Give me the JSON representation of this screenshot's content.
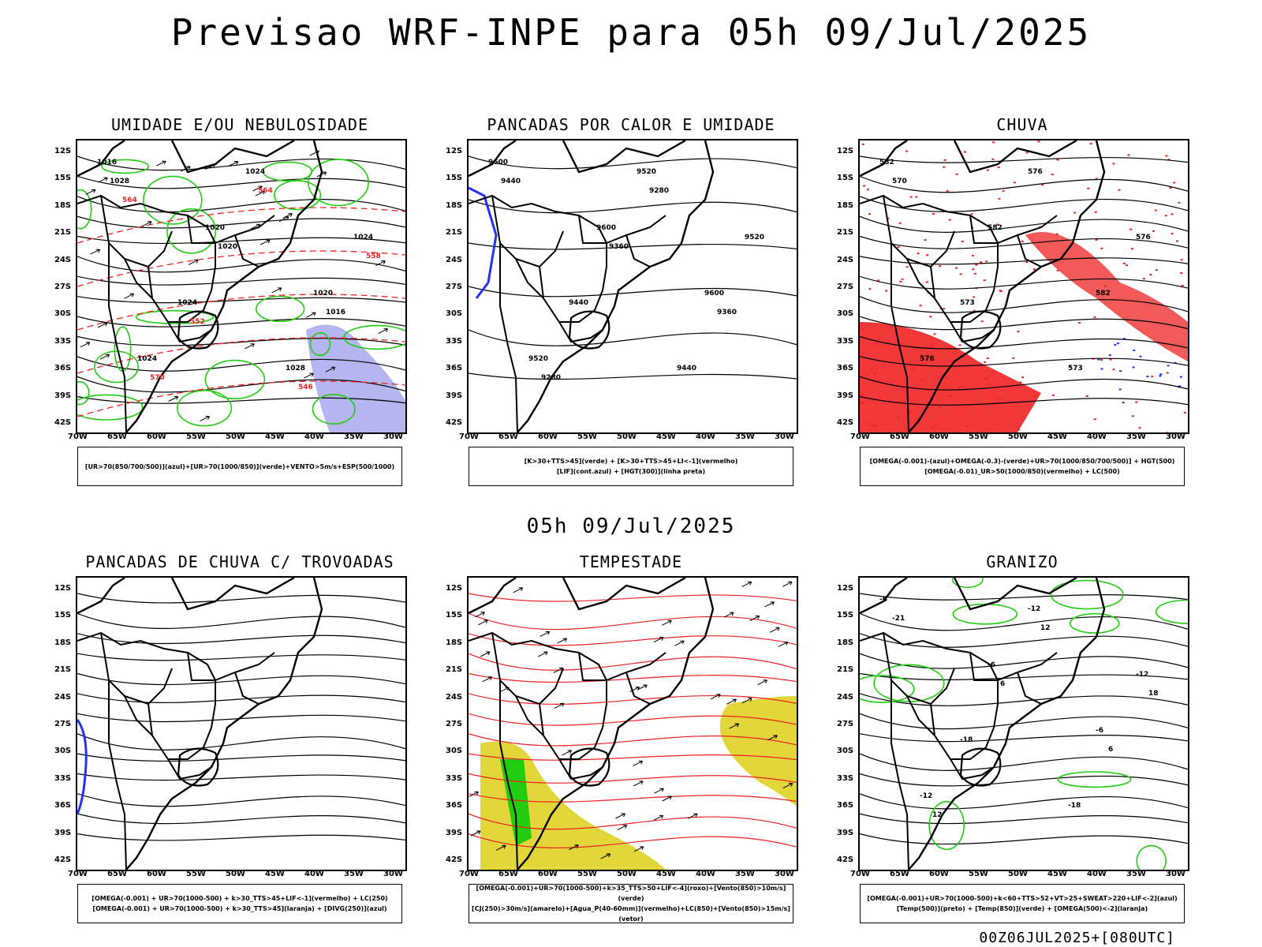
{
  "title": "Previsao WRF-INPE  para 05h 09/Jul/2025",
  "mid_date": "05h 09/Jul/2025",
  "footer": "00Z06JUL2025+[080UTC]",
  "lat_labels": [
    "12S",
    "15S",
    "18S",
    "21S",
    "24S",
    "27S",
    "30S",
    "33S",
    "36S",
    "39S",
    "42S"
  ],
  "lon_labels": [
    "70W",
    "65W",
    "60W",
    "55W",
    "50W",
    "45W",
    "40W",
    "35W",
    "30W"
  ],
  "panels": [
    {
      "title": "UMIDADE E/OU NEBULOSIDADE",
      "legend": [
        "[UR>70(850/700/500)](azul)+[UR>70(1000/850)](verde)+VENTO>5m/s+ESP(500/1000)"
      ],
      "labels": [
        "1016",
        "1020",
        "1020",
        "1024",
        "1024",
        "1024",
        "1024",
        "1028",
        "1028",
        "1020",
        "1016",
        "570",
        "564",
        "558",
        "552",
        "546",
        "564"
      ]
    },
    {
      "title": "PANCADAS POR CALOR E UMIDADE",
      "legend": [
        "[K>30+TTS>45](verde) + [K>30+TTS>45+LI<-1](vermelho)",
        "[LIF](cont.azul) + [HGT(300)](linha preta)"
      ],
      "labels": [
        "9600",
        "9600",
        "9600",
        "9520",
        "9520",
        "9520",
        "9440",
        "9440",
        "9440",
        "9360",
        "9360",
        "9280",
        "9280"
      ]
    },
    {
      "title": "CHUVA",
      "legend": [
        "[OMEGA(-0.001)-(azul)+OMEGA(-0.3)-(verde)+UR>70(1000/850/700/500)] + HGT(500)",
        "[OMEGA(-0.01)_UR>50(1000/850)(vermelho) + LC(500)"
      ],
      "labels": [
        "582",
        "582",
        "582",
        "576",
        "576",
        "576",
        "573",
        "573",
        "570"
      ]
    },
    {
      "title": "PANCADAS DE CHUVA C/ TROVOADAS",
      "legend": [
        "[OMEGA(-0.001) + UR>70(1000-500) + k>30_TTS>45+LIF<-1](vermelho) + LC(250)",
        "[OMEGA(-0.001) + UR>70(1000-500) + k>30_TTS>45](laranja) + [DIVG(250)](azul)"
      ],
      "labels": []
    },
    {
      "title": "TEMPESTADE",
      "legend": [
        "[OMEGA(-0.001)+UR>70(1000-500)+k>35_TTS>50+LIF<-4](roxo)+[Vento(850)>10m/s](verde)",
        "[CJ(250)>30m/s](amarelo)+[Agua_P(40-60mm)](vermelho)+LC(850)+[Vento(850)>15m/s](vetor)"
      ],
      "labels": []
    },
    {
      "title": "GRANIZO",
      "legend": [
        "[OMEGA(-0.001)+UR>70(1000-500)+k<60+TTS>52+VT>25+SWEAT>220+LIF<-2](azul)",
        "[Temp(500)](preto) + [Temp(850)](verde) + [OMEGA(500)<-2](laranja)"
      ],
      "labels": [
        "-6",
        "-6",
        "-6",
        "-12",
        "-12",
        "-12",
        "-18",
        "-18",
        "-21",
        "6",
        "6",
        "12",
        "12",
        "18"
      ]
    }
  ],
  "colors": {
    "red": "#ee2222",
    "green": "#22cc11",
    "blue": "#2233ee",
    "lavender": "#a8a8ee",
    "yellow": "#e2d63a"
  }
}
